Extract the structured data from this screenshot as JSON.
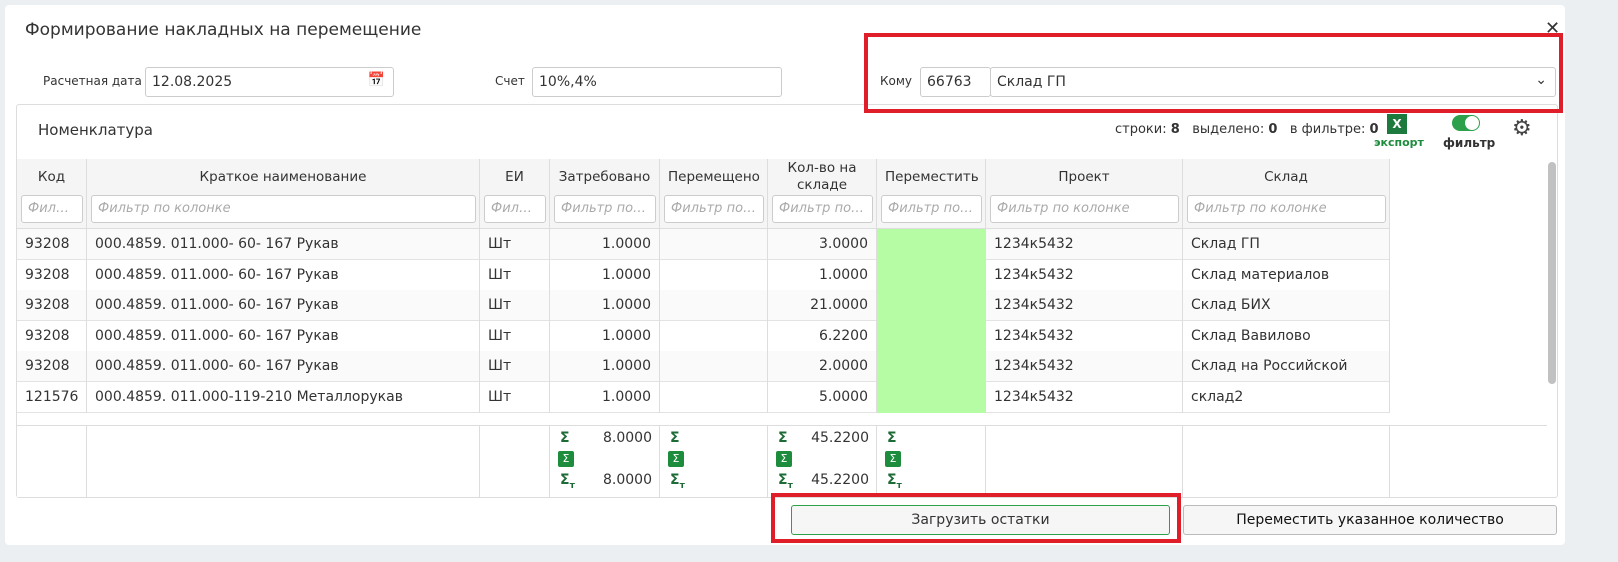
{
  "title": "Формирование накладных на перемещение",
  "form": {
    "date_label": "Расчетная дата",
    "date_value": "12.08.2025",
    "account_label": "Счет",
    "account_value": "10%,4%",
    "to_label": "Кому",
    "to_code": "66763",
    "to_name": "Склад ГП"
  },
  "panel": {
    "title": "Номенклатура",
    "rows_label": "строки:",
    "rows_value": "8",
    "selected_label": "выделено:",
    "selected_value": "0",
    "filtered_label": "в фильтре:",
    "filtered_value": "0",
    "export_icon": "X",
    "export_label": "экспорт",
    "filter_label": "фильтр"
  },
  "table": {
    "columns": [
      {
        "title": "Код",
        "filter": "Фильтр по колонке"
      },
      {
        "title": "Краткое наименование",
        "filter": "Фильтр по колонке"
      },
      {
        "title": "ЕИ",
        "filter": "Фильтр по колонке"
      },
      {
        "title": "Затребовано",
        "filter": "Фильтр по колонке"
      },
      {
        "title": "Перемещено",
        "filter": "Фильтр по колонке"
      },
      {
        "title": "Кол-во на складе",
        "filter": "Фильтр по колонке"
      },
      {
        "title": "Переместить",
        "filter": "Фильтр по колонке"
      },
      {
        "title": "Проект",
        "filter": "Фильтр по колонке"
      },
      {
        "title": "Склад",
        "filter": "Фильтр по колонке"
      }
    ],
    "rows": [
      {
        "code": "93208",
        "name": "000.4859. 011.000- 60- 167 Рукав",
        "unit": "Шт",
        "requested": "1.0000",
        "stock": "3.0000",
        "project": "1234к5432",
        "warehouse": "Склад ГП"
      },
      {
        "code": "93208",
        "name": "000.4859. 011.000- 60- 167 Рукав",
        "unit": "Шт",
        "requested": "1.0000",
        "stock": "1.0000",
        "project": "1234к5432",
        "warehouse": "Склад материалов"
      },
      {
        "code": "93208",
        "name": "000.4859. 011.000- 60- 167 Рукав",
        "unit": "Шт",
        "requested": "1.0000",
        "stock": "21.0000",
        "project": "1234к5432",
        "warehouse": "Склад БИХ"
      },
      {
        "code": "93208",
        "name": "000.4859. 011.000- 60- 167 Рукав",
        "unit": "Шт",
        "requested": "1.0000",
        "stock": "6.2200",
        "project": "1234к5432",
        "warehouse": "Склад Вавилово"
      },
      {
        "code": "93208",
        "name": "000.4859. 011.000- 60- 167 Рукав",
        "unit": "Шт",
        "requested": "1.0000",
        "stock": "2.0000",
        "project": "1234к5432",
        "warehouse": "Склад на Российской"
      },
      {
        "code": "121576",
        "name": "000.4859. 011.000-119-210 Металлорукав",
        "unit": "Шт",
        "requested": "1.0000",
        "stock": "5.0000",
        "project": "1234к5432",
        "warehouse": "склад2"
      }
    ],
    "footer": {
      "sum_symbol": "Σ",
      "filtered_sub": "т",
      "requested_sum": "8.0000",
      "requested_filtered": "8.0000",
      "stock_sum": "45.2200",
      "stock_filtered": "45.2200"
    }
  },
  "buttons": {
    "load": "Загрузить остатки",
    "move": "Переместить указанное количество"
  }
}
